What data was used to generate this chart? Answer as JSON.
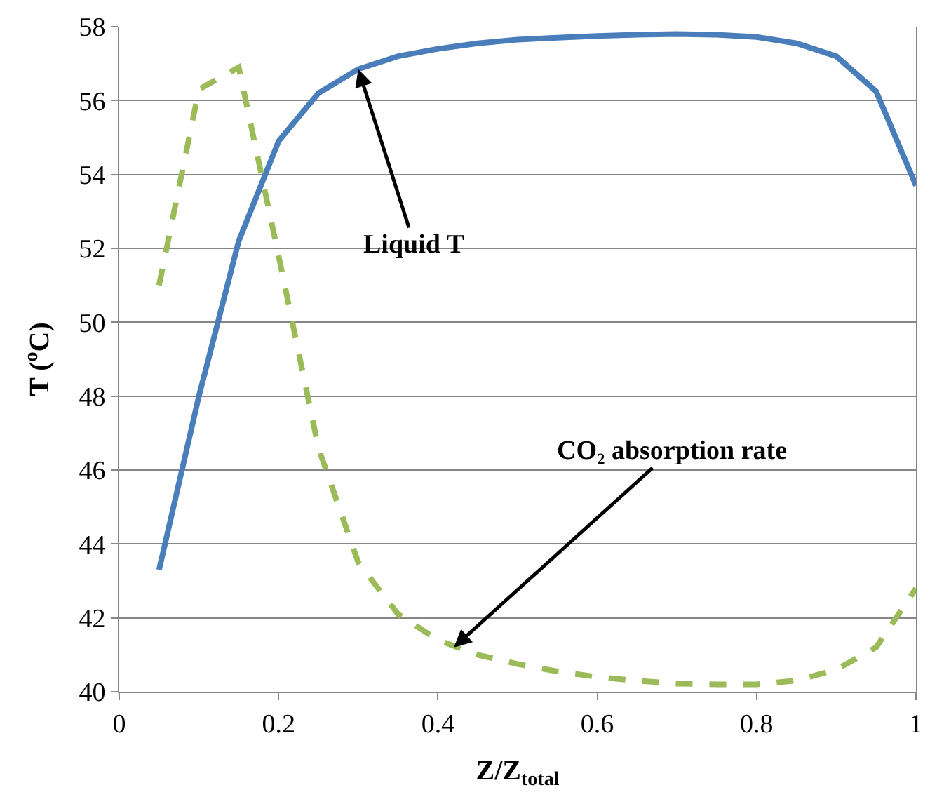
{
  "chart_data": {
    "type": "line",
    "xlabel": "Z/Z$_{total}$",
    "ylabel": "T ($^{o}$C)",
    "x": [
      0.05,
      0.1,
      0.15,
      0.2,
      0.25,
      0.3,
      0.35,
      0.4,
      0.45,
      0.5,
      0.55,
      0.6,
      0.65,
      0.7,
      0.75,
      0.8,
      0.85,
      0.9,
      0.95,
      1.0
    ],
    "series": [
      {
        "color": "#4a7ebb",
        "line_style": "solid",
        "values": [
          43.3,
          48.0,
          52.2,
          54.9,
          56.2,
          56.85,
          57.2,
          57.4,
          57.55,
          57.65,
          57.7,
          57.75,
          57.78,
          57.8,
          57.78,
          57.72,
          57.55,
          57.2,
          56.25,
          53.7
        ]
      },
      {
        "color": "#9bbb59",
        "line_style": "dashed",
        "values": [
          51.0,
          56.3,
          56.9,
          51.8,
          46.6,
          43.5,
          42.1,
          41.4,
          41.0,
          40.75,
          40.55,
          40.4,
          40.3,
          40.22,
          40.2,
          40.2,
          40.3,
          40.6,
          41.2,
          42.8
        ]
      }
    ],
    "xlim": [
      0,
      1
    ],
    "xticks": [
      0,
      0.2,
      0.4,
      0.6,
      0.8,
      1
    ],
    "ylim": [
      40,
      58
    ],
    "yticks": [
      40,
      42,
      44,
      46,
      48,
      50,
      52,
      54,
      56,
      58
    ],
    "grid": "y",
    "annotations": [
      {
        "text": "Liquid T",
        "x": 0.3,
        "y": 56.85
      },
      {
        "text": "CO₂ absorption rate",
        "x": 0.42,
        "y": 41.2
      }
    ]
  }
}
